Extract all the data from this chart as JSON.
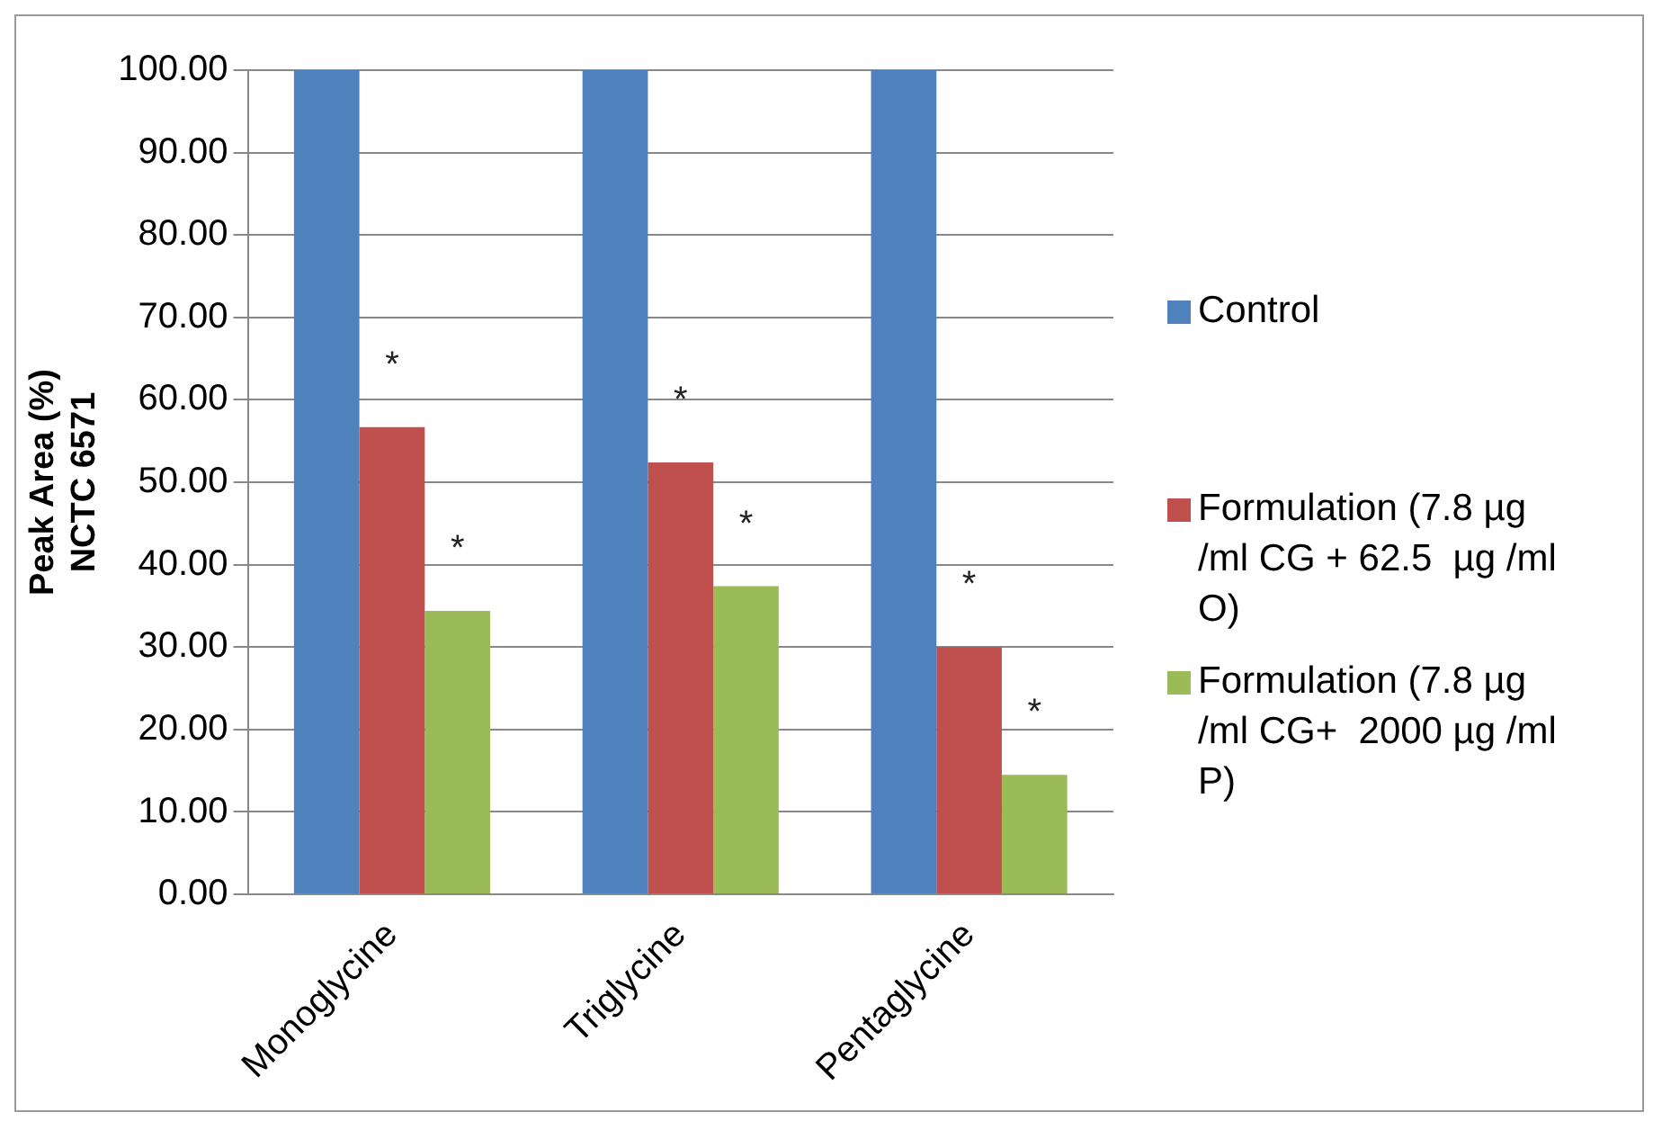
{
  "chart_data": {
    "type": "bar",
    "ylabel": "Peak Area (%)\nNCTC 6571",
    "categories": [
      "Monoglycine",
      "Triglycine",
      "Pentaglycine"
    ],
    "series": [
      {
        "name": "Control",
        "color": "#4f81bd",
        "values": [
          100,
          100,
          100
        ]
      },
      {
        "name": "Formulation (7.8 µg /ml CG + 62.5  µg /ml O)",
        "color": "#c0504d",
        "values": [
          56.7,
          52.4,
          30.0
        ]
      },
      {
        "name": "Formulation (7.8 µg /ml CG+  2000 µg /ml P)",
        "color": "#9bbb59",
        "values": [
          34.4,
          37.4,
          14.5
        ]
      }
    ],
    "ylim": [
      0,
      100
    ],
    "yticks": [
      {
        "value": 0,
        "label": "0.00"
      },
      {
        "value": 10,
        "label": "10.00"
      },
      {
        "value": 20,
        "label": "20.00"
      },
      {
        "value": 30,
        "label": "30.00"
      },
      {
        "value": 40,
        "label": "40.00"
      },
      {
        "value": 50,
        "label": "50.00"
      },
      {
        "value": 60,
        "label": "60.00"
      },
      {
        "value": 70,
        "label": "70.00"
      },
      {
        "value": 80,
        "label": "80.00"
      },
      {
        "value": 90,
        "label": "90.00"
      },
      {
        "value": 100,
        "label": "100.00"
      }
    ],
    "grid": "y",
    "legend": "right",
    "annotations": [
      "*",
      "*",
      "*",
      "*",
      "*",
      "*"
    ]
  }
}
